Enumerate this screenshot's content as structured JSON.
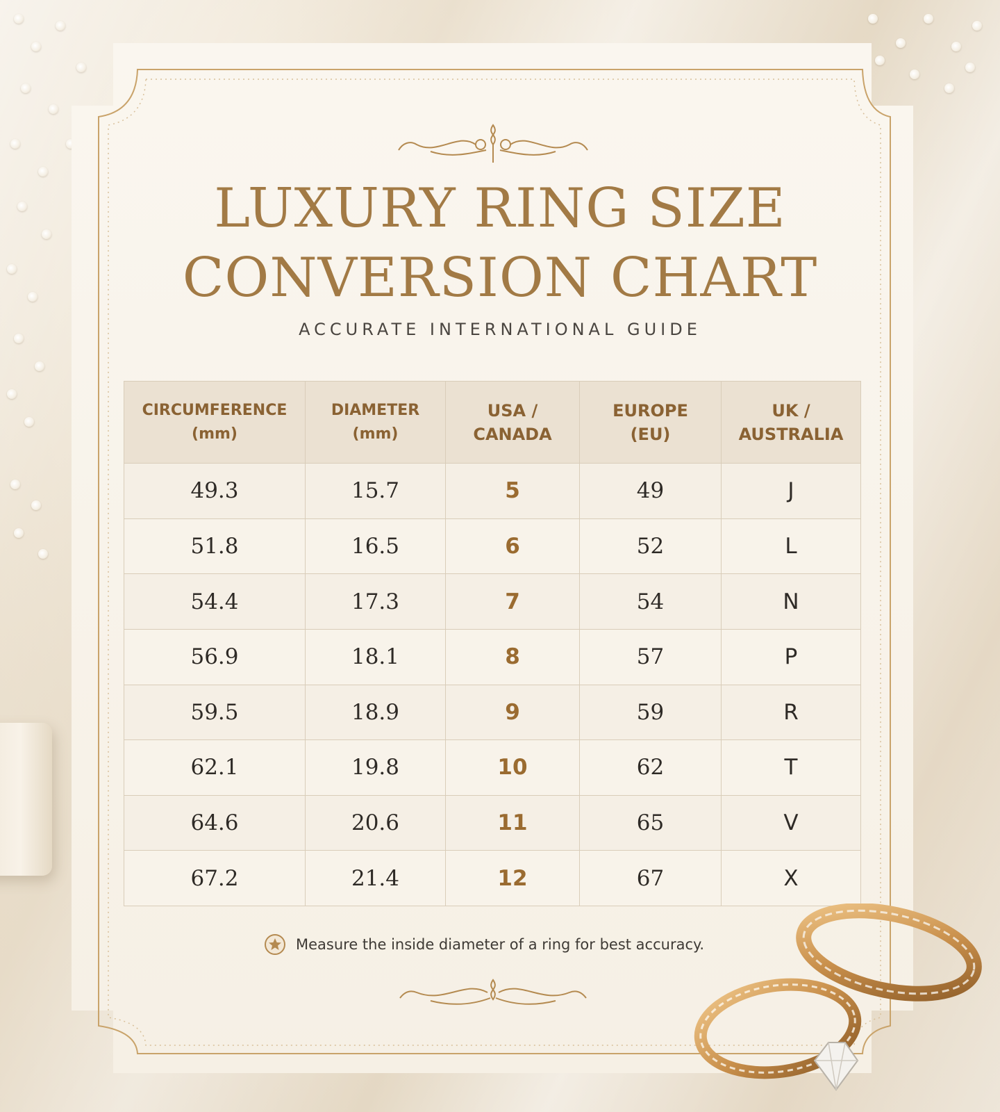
{
  "title": {
    "line1": "LUXURY RING SIZE",
    "line2": "CONVERSION CHART"
  },
  "subtitle": "ACCURATE INTERNATIONAL GUIDE",
  "table": {
    "headers": [
      {
        "line1": "CIRCUMFERENCE",
        "line2": "(mm)"
      },
      {
        "line1": "DIAMETER",
        "line2": "(mm)"
      },
      {
        "line1": "USA /",
        "line2": "CANADA"
      },
      {
        "line1": "EUROPE",
        "line2": "(EU)"
      },
      {
        "line1": "UK /",
        "line2": "AUSTRALIA"
      }
    ],
    "rows": [
      [
        "49.3",
        "15.7",
        "5",
        "49",
        "J"
      ],
      [
        "51.8",
        "16.5",
        "6",
        "52",
        "L"
      ],
      [
        "54.4",
        "17.3",
        "7",
        "54",
        "N"
      ],
      [
        "56.9",
        "18.1",
        "8",
        "57",
        "P"
      ],
      [
        "59.5",
        "18.9",
        "9",
        "59",
        "R"
      ],
      [
        "62.1",
        "19.8",
        "10",
        "62",
        "T"
      ],
      [
        "64.6",
        "20.6",
        "11",
        "65",
        "V"
      ],
      [
        "67.2",
        "21.4",
        "12",
        "67",
        "X"
      ]
    ]
  },
  "note": {
    "icon": "star-icon",
    "text": "Measure the inside diameter of a ring for best accuracy."
  },
  "decor": {
    "icons": [
      "scroll-ornament-icon",
      "rings-illustration",
      "babys-breath-flowers"
    ],
    "colors": {
      "gold": "#a27a45",
      "accent": "#9a6b30",
      "text": "#2e2a26",
      "paper": "#f8f3ea",
      "header_bg": "#ebe1d2"
    }
  }
}
